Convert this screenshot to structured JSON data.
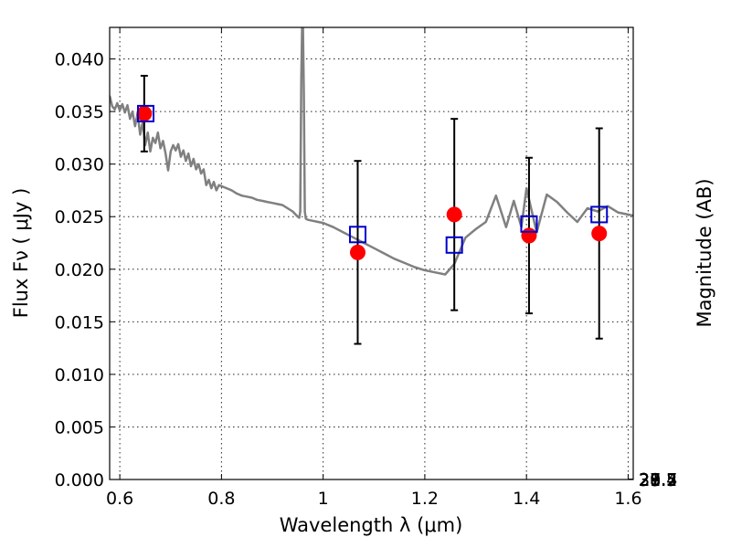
{
  "chart_data": {
    "type": "scatter",
    "xlabel": "Wavelength  λ (μm)",
    "ylabel": "Flux  Fν  ( μJy )",
    "y2label": "Magnitude (AB)",
    "xlim": [
      0.58,
      1.61
    ],
    "ylim": [
      0.0,
      0.043
    ],
    "grid": true,
    "x_ticks": [
      0.6,
      0.8,
      1.0,
      1.2,
      1.4,
      1.6
    ],
    "x_tick_labels": [
      "0.6",
      "0.8",
      "1",
      "1.2",
      "1.4",
      "1.6"
    ],
    "y_ticks": [
      0.0,
      0.005,
      0.01,
      0.015,
      0.02,
      0.025,
      0.03,
      0.035,
      0.04
    ],
    "y_tick_labels": [
      "0.000",
      "0.005",
      "0.010",
      "0.015",
      "0.020",
      "0.025",
      "0.030",
      "0.035",
      "0.040"
    ],
    "y2_ticks": [
      27.4,
      27.5,
      27.7,
      28,
      28.2,
      28.5,
      29,
      29.5,
      30,
      31
    ],
    "y2_tick_labels": [
      "27.4",
      "27.5",
      "27.7",
      "28",
      "28.2",
      "28.5",
      "29",
      "29.5",
      "30",
      "31"
    ],
    "observed": {
      "x": [
        0.648,
        1.068,
        1.258,
        1.405,
        1.543
      ],
      "y": [
        0.0348,
        0.0216,
        0.0252,
        0.0232,
        0.0234
      ],
      "yerr": [
        0.0036,
        0.0087,
        0.0091,
        0.0074,
        0.01
      ],
      "color": "#ff0000"
    },
    "model_points": {
      "x": [
        0.651,
        1.068,
        1.258,
        1.405,
        1.543
      ],
      "y": [
        0.0348,
        0.0233,
        0.0223,
        0.0243,
        0.0252
      ],
      "color": "#0000cc"
    },
    "spectrum": {
      "color": "#808080",
      "x": [
        0.58,
        0.585,
        0.59,
        0.595,
        0.6,
        0.605,
        0.61,
        0.615,
        0.62,
        0.625,
        0.63,
        0.635,
        0.64,
        0.645,
        0.65,
        0.655,
        0.66,
        0.665,
        0.67,
        0.675,
        0.68,
        0.685,
        0.69,
        0.695,
        0.7,
        0.705,
        0.71,
        0.715,
        0.72,
        0.725,
        0.73,
        0.735,
        0.74,
        0.745,
        0.75,
        0.755,
        0.76,
        0.765,
        0.77,
        0.775,
        0.78,
        0.785,
        0.79,
        0.795,
        0.8,
        0.81,
        0.82,
        0.83,
        0.84,
        0.85,
        0.86,
        0.87,
        0.88,
        0.89,
        0.9,
        0.91,
        0.92,
        0.93,
        0.94,
        0.95,
        0.953,
        0.955,
        0.957,
        0.959,
        0.96,
        0.962,
        0.964,
        0.966,
        0.97,
        0.98,
        0.99,
        1.0,
        1.02,
        1.04,
        1.06,
        1.08,
        1.1,
        1.12,
        1.14,
        1.16,
        1.18,
        1.2,
        1.22,
        1.24,
        1.258,
        1.28,
        1.3,
        1.32,
        1.34,
        1.36,
        1.375,
        1.39,
        1.4,
        1.42,
        1.44,
        1.46,
        1.48,
        1.5,
        1.52,
        1.54,
        1.56,
        1.58,
        1.6,
        1.61
      ],
      "y": [
        0.0365,
        0.0355,
        0.0352,
        0.0358,
        0.0351,
        0.0357,
        0.0349,
        0.0356,
        0.0343,
        0.035,
        0.0336,
        0.0348,
        0.0328,
        0.034,
        0.0318,
        0.033,
        0.0312,
        0.0325,
        0.032,
        0.033,
        0.0315,
        0.0322,
        0.031,
        0.0294,
        0.0312,
        0.0318,
        0.0313,
        0.0319,
        0.0307,
        0.0313,
        0.0303,
        0.031,
        0.0298,
        0.0305,
        0.0295,
        0.03,
        0.0291,
        0.0295,
        0.028,
        0.0285,
        0.0277,
        0.0283,
        0.0275,
        0.028,
        0.0279,
        0.0277,
        0.0275,
        0.0272,
        0.027,
        0.0269,
        0.0268,
        0.0266,
        0.0265,
        0.0264,
        0.0263,
        0.0262,
        0.0261,
        0.0258,
        0.0255,
        0.025,
        0.0249,
        0.0255,
        0.038,
        0.044,
        0.044,
        0.037,
        0.0255,
        0.0248,
        0.0247,
        0.0246,
        0.0245,
        0.0244,
        0.024,
        0.0235,
        0.023,
        0.0225,
        0.022,
        0.0215,
        0.021,
        0.0206,
        0.0202,
        0.0199,
        0.0197,
        0.0195,
        0.0205,
        0.023,
        0.0238,
        0.0245,
        0.027,
        0.024,
        0.0265,
        0.024,
        0.0277,
        0.0235,
        0.0271,
        0.0264,
        0.0254,
        0.0245,
        0.0258,
        0.0255,
        0.026,
        0.0254,
        0.0252,
        0.0251
      ]
    }
  }
}
